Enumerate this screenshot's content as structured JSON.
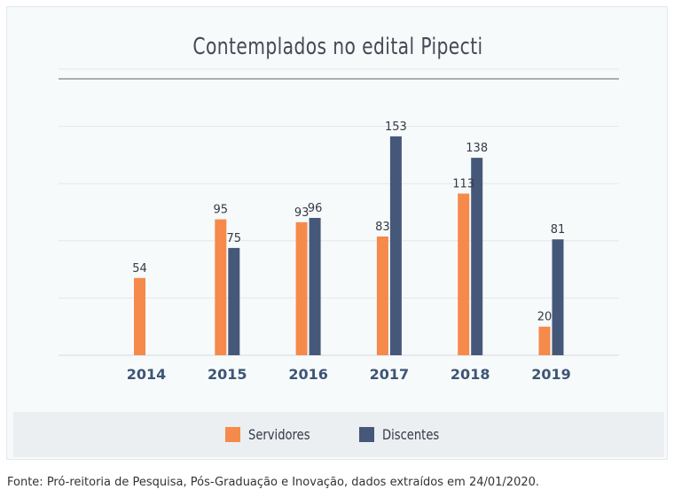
{
  "chart_data": {
    "type": "bar",
    "title": "Contemplados no edital Pipecti",
    "categories": [
      "2014",
      "2015",
      "2016",
      "2017",
      "2018",
      "2019"
    ],
    "series": [
      {
        "name": "Servidores",
        "values": [
          54,
          95,
          93,
          83,
          113,
          20
        ],
        "color": "#f58a4b"
      },
      {
        "name": "Discentes",
        "values": [
          null,
          75,
          96,
          153,
          138,
          81
        ],
        "color": "#45587a"
      }
    ],
    "ylim": [
      0,
      200
    ],
    "grid": true,
    "legend_position": "bottom"
  },
  "source_note": "Fonte: Pró-reitoria de Pesquisa, Pós-Graduação e Inovação, dados extraídos em 24/01/2020."
}
